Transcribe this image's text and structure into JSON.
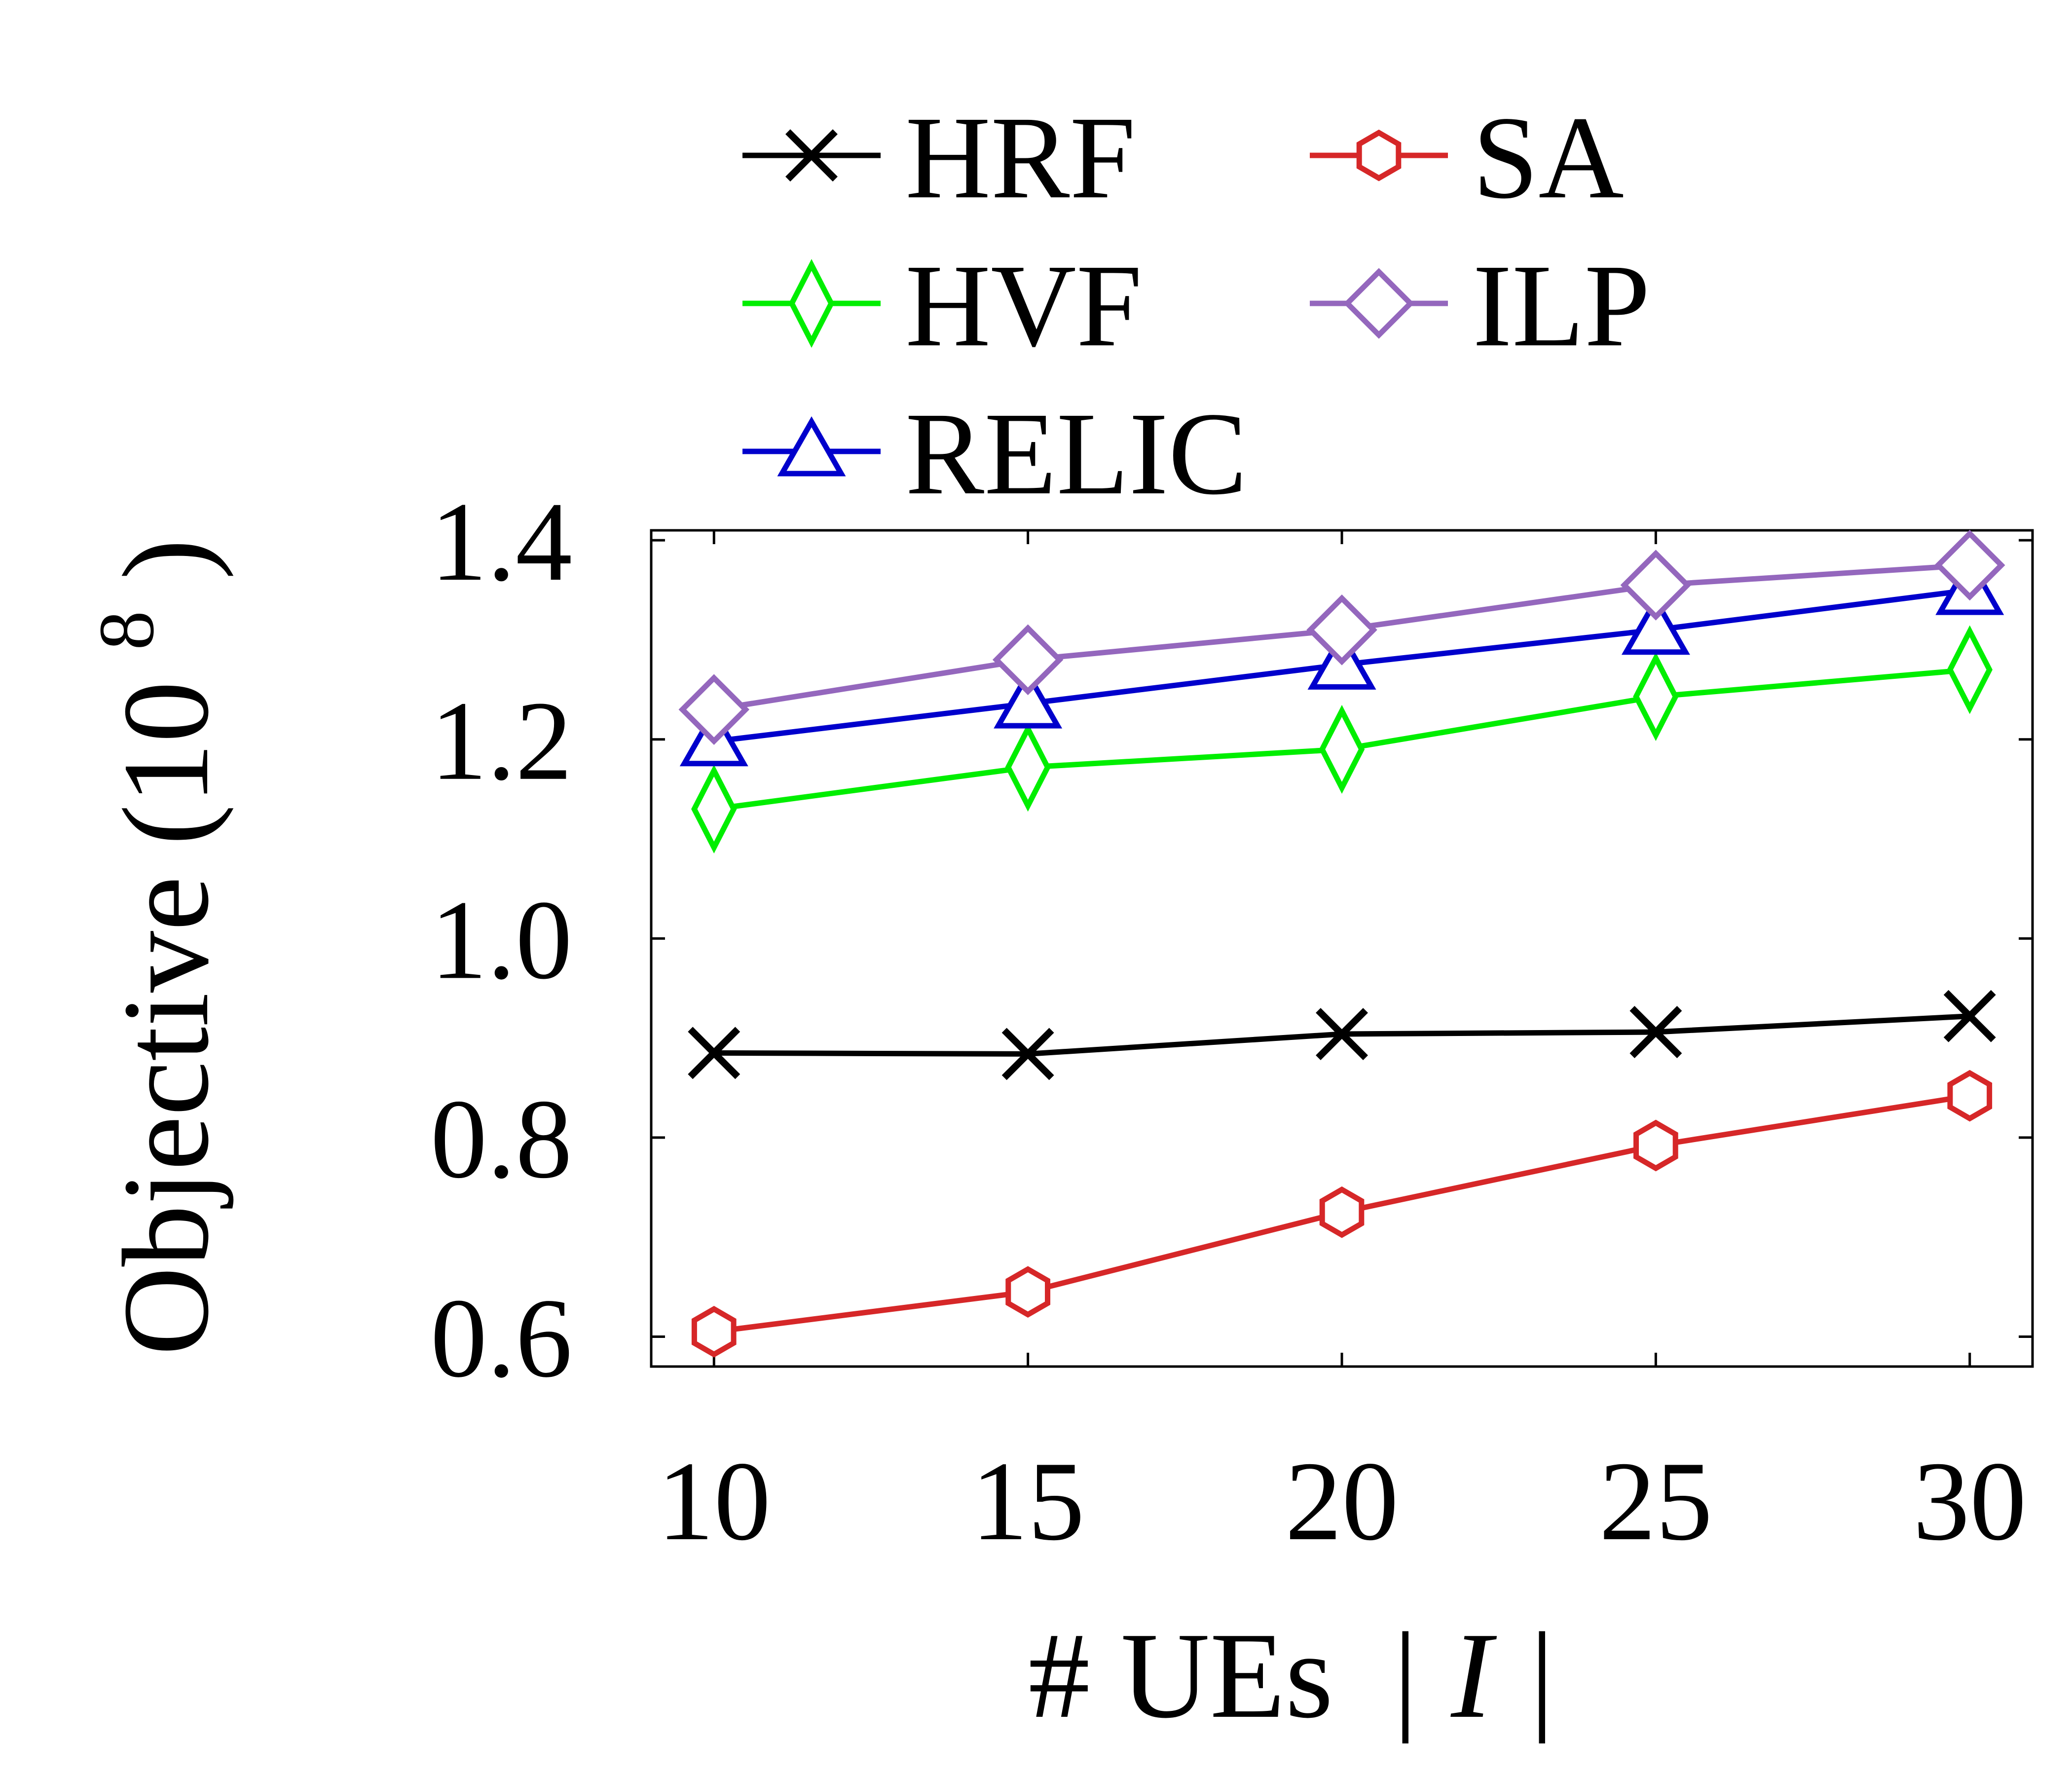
{
  "chart_data": {
    "type": "line",
    "x": [
      10,
      15,
      20,
      25,
      30
    ],
    "xlim": [
      9,
      31
    ],
    "ylim": [
      0.57,
      1.41
    ],
    "xticks": [
      "10",
      "15",
      "20",
      "25",
      "30"
    ],
    "yticks": [
      "0.6",
      "0.8",
      "1.0",
      "1.2",
      "1.4"
    ],
    "xlabel": "# UEs",
    "xlabel_math": "| I |",
    "ylabel": "Objective (10",
    "ylabel_exp": "8",
    "ylabel_close": ")",
    "grid": false,
    "legend_position": "top",
    "series": [
      {
        "name": "HRF",
        "color": "#000000",
        "marker": "x",
        "values": [
          0.885,
          0.884,
          0.904,
          0.906,
          0.922
        ]
      },
      {
        "name": "HVF",
        "color": "#00ee00",
        "marker": "thin-diamond",
        "values": [
          1.13,
          1.172,
          1.19,
          1.243,
          1.27
        ]
      },
      {
        "name": "RELIC",
        "color": "#0000cc",
        "marker": "triangle",
        "values": [
          1.198,
          1.236,
          1.275,
          1.31,
          1.35
        ]
      },
      {
        "name": "SA",
        "color": "#d62728",
        "marker": "hexagon",
        "values": [
          0.605,
          0.645,
          0.725,
          0.792,
          0.842
        ]
      },
      {
        "name": "ILP",
        "color": "#9467bd",
        "marker": "diamond",
        "values": [
          1.23,
          1.28,
          1.31,
          1.355,
          1.375
        ]
      }
    ]
  }
}
